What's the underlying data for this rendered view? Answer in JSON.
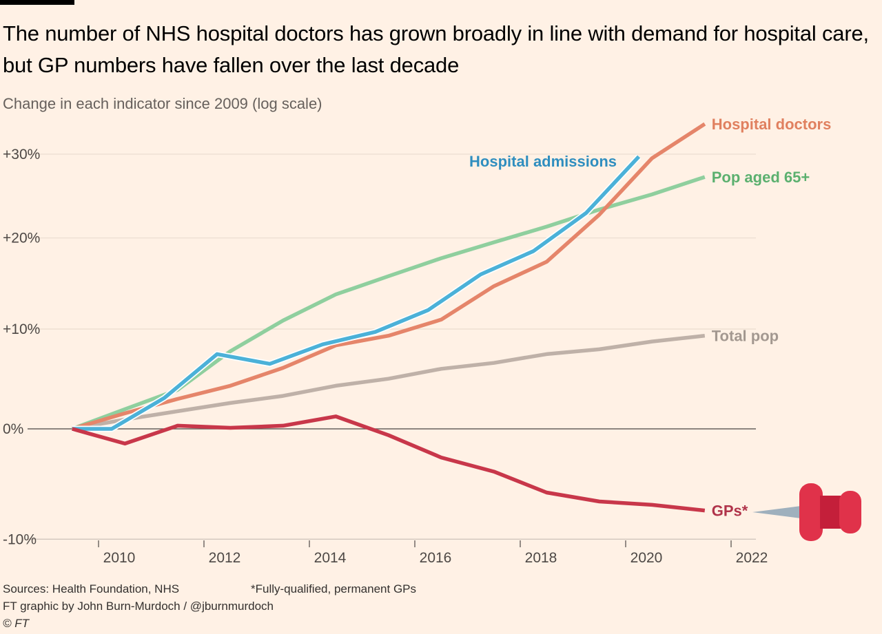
{
  "chart_data": {
    "type": "line",
    "title": "The number of NHS hospital doctors has grown broadly in line with demand for hospital care, but GP numbers have fallen over the last decade",
    "subtitle": "Change in each indicator since 2009 (log scale)",
    "xlabel": "",
    "ylabel": "",
    "y_scale": "log",
    "xlim": [
      2009,
      2022.5
    ],
    "ylim": [
      -10,
      30
    ],
    "y_ticks": [
      {
        "value": 30,
        "label": "+30%"
      },
      {
        "value": 20,
        "label": "+20%"
      },
      {
        "value": 10,
        "label": "+10%"
      },
      {
        "value": 0,
        "label": "0%"
      },
      {
        "value": -10,
        "label": "-10%"
      }
    ],
    "x_ticks": [
      {
        "value": 2010,
        "label": "2010"
      },
      {
        "value": 2012,
        "label": "2012"
      },
      {
        "value": 2014,
        "label": "2014"
      },
      {
        "value": 2016,
        "label": "2016"
      },
      {
        "value": 2018,
        "label": "2018"
      },
      {
        "value": 2020,
        "label": "2020"
      },
      {
        "value": 2022,
        "label": "2022"
      }
    ],
    "grid": true,
    "legend": "direct-labels-right",
    "series": [
      {
        "name": "Total pop",
        "color": "#bfb1a8",
        "label_color": "#a39890",
        "x": [
          2009.5,
          2010.5,
          2011.5,
          2012.5,
          2013.5,
          2014.5,
          2015.5,
          2016.5,
          2017.5,
          2018.5,
          2019.5,
          2020.5,
          2021.5
        ],
        "y": [
          0,
          0.9,
          1.7,
          2.5,
          3.2,
          4.2,
          4.9,
          5.9,
          6.5,
          7.4,
          7.9,
          8.7,
          9.3
        ]
      },
      {
        "name": "Pop aged 65+",
        "color": "#8fcf9e",
        "label_color": "#5bb06f",
        "x": [
          2009.5,
          2010.5,
          2011.5,
          2012.5,
          2013.5,
          2014.5,
          2015.5,
          2016.5,
          2017.5,
          2018.5,
          2019.5,
          2020.5,
          2021.5
        ],
        "y": [
          0,
          1.9,
          3.8,
          7.7,
          10.9,
          13.7,
          15.7,
          17.7,
          19.5,
          21.3,
          23.3,
          25.1,
          27.2
        ]
      },
      {
        "name": "Hospital doctors",
        "color": "#e5856a",
        "label_color": "#e0805f",
        "x": [
          2009.5,
          2010.5,
          2011.5,
          2012.5,
          2013.5,
          2014.5,
          2015.5,
          2016.5,
          2017.5,
          2018.5,
          2019.5,
          2020.5,
          2021.5
        ],
        "y": [
          0,
          1.5,
          2.9,
          4.2,
          6.0,
          8.3,
          9.3,
          11.0,
          14.6,
          17.3,
          22.7,
          29.5,
          33.8
        ]
      },
      {
        "name": "Hospital admissions",
        "color": "#4bb1d8",
        "label_color": "#2f8ebf",
        "x": [
          2009.5,
          2010.25,
          2011.25,
          2012.25,
          2013.25,
          2014.25,
          2015.25,
          2016.25,
          2017.25,
          2018.25,
          2019.25,
          2020.25
        ],
        "y": [
          0,
          0,
          3.0,
          7.4,
          6.4,
          8.4,
          9.7,
          12.0,
          15.9,
          18.5,
          22.9,
          29.7
        ]
      },
      {
        "name": "GPs*",
        "color": "#c8374a",
        "label_color": "#b0334a",
        "x": [
          2009.5,
          2010.5,
          2011.5,
          2012.5,
          2013.5,
          2014.5,
          2015.5,
          2016.5,
          2017.5,
          2018.5,
          2019.5,
          2020.5,
          2021.5
        ],
        "y": [
          0,
          -1.4,
          0.3,
          0.1,
          0.3,
          1.2,
          -0.6,
          -2.7,
          -4.0,
          -5.9,
          -6.7,
          -7.0,
          -7.5
        ]
      }
    ]
  },
  "footer": {
    "sources": "Sources: Health Foundation, NHS",
    "note": "*Fully-qualified, permanent GPs",
    "credit": "FT graphic by John Burn-Murdoch / @jburnmurdoch",
    "copyright": "© FT"
  }
}
